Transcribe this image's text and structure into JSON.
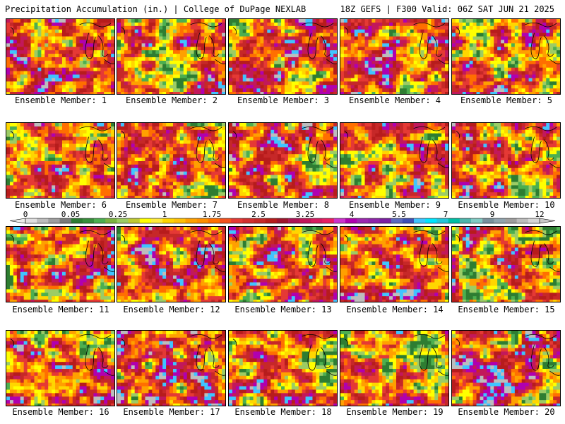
{
  "header": {
    "title_left": "Precipitation Accumulation (in.) | College of DuPage NEXLAB",
    "title_right": "18Z GEFS | F300 Valid: 06Z SAT JUN 21 2025"
  },
  "colorbar": {
    "tick_labels": [
      "0",
      "0.05",
      "0.25",
      "1",
      "1.75",
      "2.5",
      "3.25",
      "4",
      "5.5",
      "7",
      "9",
      "12"
    ],
    "colors": [
      "#e0e0e0",
      "#bdbdbd",
      "#9e9e9e",
      "#7a7a7a",
      "#2e7d32",
      "#388e3c",
      "#4caf50",
      "#7cb342",
      "#9ccc65",
      "#c0ca33",
      "#ffff00",
      "#ffeb3b",
      "#ffd600",
      "#ffc107",
      "#ffa000",
      "#ff8f00",
      "#ff6f00",
      "#f4511e",
      "#e53935",
      "#d32f2f",
      "#c62828",
      "#b71c1c",
      "#a0142c",
      "#ad1457",
      "#c2185b",
      "#d81b60",
      "#e91e63",
      "#cc33cc",
      "#b000b0",
      "#9c27b0",
      "#8e24aa",
      "#7b1fa2",
      "#5c6bc0",
      "#3f51b5",
      "#40c4ff",
      "#00e5ff",
      "#26c6da",
      "#00bfa5",
      "#4db6ac",
      "#80cbc4",
      "#78909c",
      "#90a4ae",
      "#9e9e9e",
      "#bdbdbd",
      "#d6d6d6"
    ]
  },
  "members": [
    {
      "label": "Ensemble Member: 1"
    },
    {
      "label": "Ensemble Member: 2"
    },
    {
      "label": "Ensemble Member: 3"
    },
    {
      "label": "Ensemble Member: 4"
    },
    {
      "label": "Ensemble Member: 5"
    },
    {
      "label": "Ensemble Member: 6"
    },
    {
      "label": "Ensemble Member: 7"
    },
    {
      "label": "Ensemble Member: 8"
    },
    {
      "label": "Ensemble Member: 9"
    },
    {
      "label": "Ensemble Member: 10"
    },
    {
      "label": "Ensemble Member: 11"
    },
    {
      "label": "Ensemble Member: 12"
    },
    {
      "label": "Ensemble Member: 13"
    },
    {
      "label": "Ensemble Member: 14"
    },
    {
      "label": "Ensemble Member: 15"
    },
    {
      "label": "Ensemble Member: 16"
    },
    {
      "label": "Ensemble Member: 17"
    },
    {
      "label": "Ensemble Member: 18"
    },
    {
      "label": "Ensemble Member: 19"
    },
    {
      "label": "Ensemble Member: 20"
    }
  ]
}
